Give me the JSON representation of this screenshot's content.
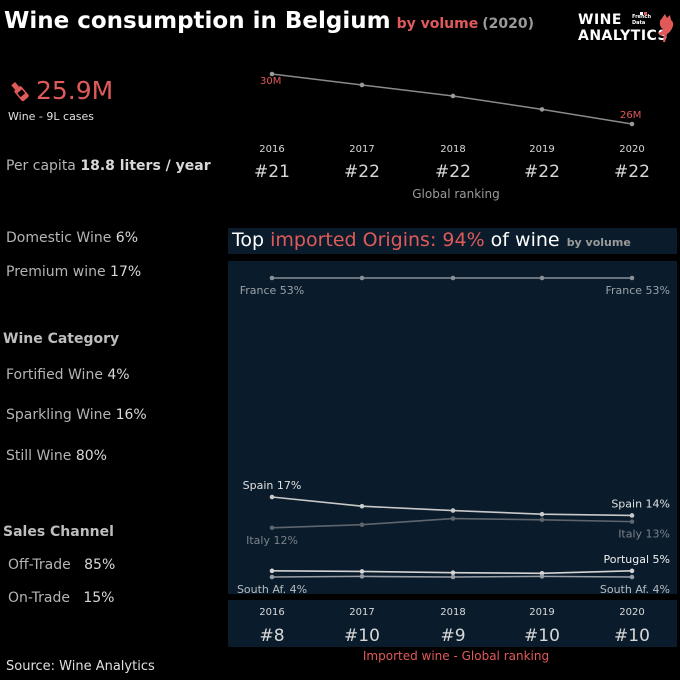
{
  "header": {
    "title": "Wine consumption in Belgium",
    "subtitle_measure": "by volume",
    "subtitle_year": "(2020)"
  },
  "logo": {
    "line1": "WINE",
    "line2": "ANALYTICS",
    "tag1": "French",
    "tag2": "Data"
  },
  "kpi": {
    "value": "25.9M",
    "caption": "Wine - 9L cases",
    "per_capita_label": "Per capita",
    "per_capita_value": "18.8 liters / year"
  },
  "stats": {
    "domestic_label": "Domestic Wine",
    "domestic_value": "6%",
    "premium_label": "Premium wine",
    "premium_value": "17%"
  },
  "category": {
    "header": "Wine Category",
    "items": [
      {
        "label": "Fortified Wine",
        "value": "4%"
      },
      {
        "label": "Sparkling Wine",
        "value": "16%"
      },
      {
        "label": "Still Wine",
        "value": "80%"
      }
    ]
  },
  "channel": {
    "header": "Sales Channel",
    "items": [
      {
        "label": "Off-Trade",
        "value": "85%"
      },
      {
        "label": "On-Trade",
        "value": "15%"
      }
    ]
  },
  "source": "Source: Wine Analytics",
  "imports_title": {
    "part1": "Top ",
    "part2": "imported Origins: 94%",
    "part3": " of wine",
    "part4": "by volume"
  },
  "colors": {
    "accent": "#e05a5a",
    "line": "#8a8a8a",
    "panel": "#0a1c2b",
    "label": "#d8d8d8"
  },
  "chart_data": [
    {
      "type": "line",
      "x": [
        "2016",
        "2017",
        "2018",
        "2019",
        "2020"
      ],
      "values": [
        30.0,
        29.1,
        28.2,
        27.1,
        25.9
      ],
      "unit": "M",
      "point_labels": {
        "first": "30M",
        "last": "26M"
      },
      "ranking_label": "Global ranking",
      "rankings": [
        "#21",
        "#22",
        "#22",
        "#22",
        "#22"
      ]
    },
    {
      "type": "line",
      "x": [
        "2016",
        "2017",
        "2018",
        "2019",
        "2020"
      ],
      "ylim": [
        0,
        55
      ],
      "series": [
        {
          "name": "France",
          "values": [
            53,
            53,
            53,
            53,
            53
          ],
          "color": "#8a8f96",
          "start_label": "France 53%",
          "end_label": "France 53%",
          "label_pos": "below",
          "label_color": "#9aa0a8"
        },
        {
          "name": "Spain",
          "values": [
            17,
            15.5,
            14.8,
            14.2,
            14
          ],
          "color": "#c9c9c9",
          "start_label": "Spain 17%",
          "end_label": "Spain 14%",
          "label_pos": "above",
          "label_color": "#e0e0e0"
        },
        {
          "name": "Italy",
          "values": [
            12,
            12.5,
            13.5,
            13.3,
            13
          ],
          "color": "#5f656c",
          "start_label": "Italy 12%",
          "end_label": "Italy 13%",
          "label_pos": "below",
          "label_color": "#7b8189"
        },
        {
          "name": "Portugal",
          "values": [
            5,
            4.9,
            4.7,
            4.6,
            5
          ],
          "color": "#d4d4d4",
          "start_label": "",
          "end_label": "Portugal 5%",
          "label_pos": "above",
          "label_color": "#f0f0f0"
        },
        {
          "name": "South Af.",
          "values": [
            4,
            4.1,
            4,
            4.1,
            4
          ],
          "color": "#9a9fa6",
          "start_label": "South Af. 4%",
          "end_label": "South Af. 4%",
          "label_pos": "below",
          "label_color": "#b8bcc2"
        }
      ],
      "ranking_label": "Imported wine - Global ranking",
      "rankings": [
        "#8",
        "#10",
        "#9",
        "#10",
        "#10"
      ]
    }
  ]
}
